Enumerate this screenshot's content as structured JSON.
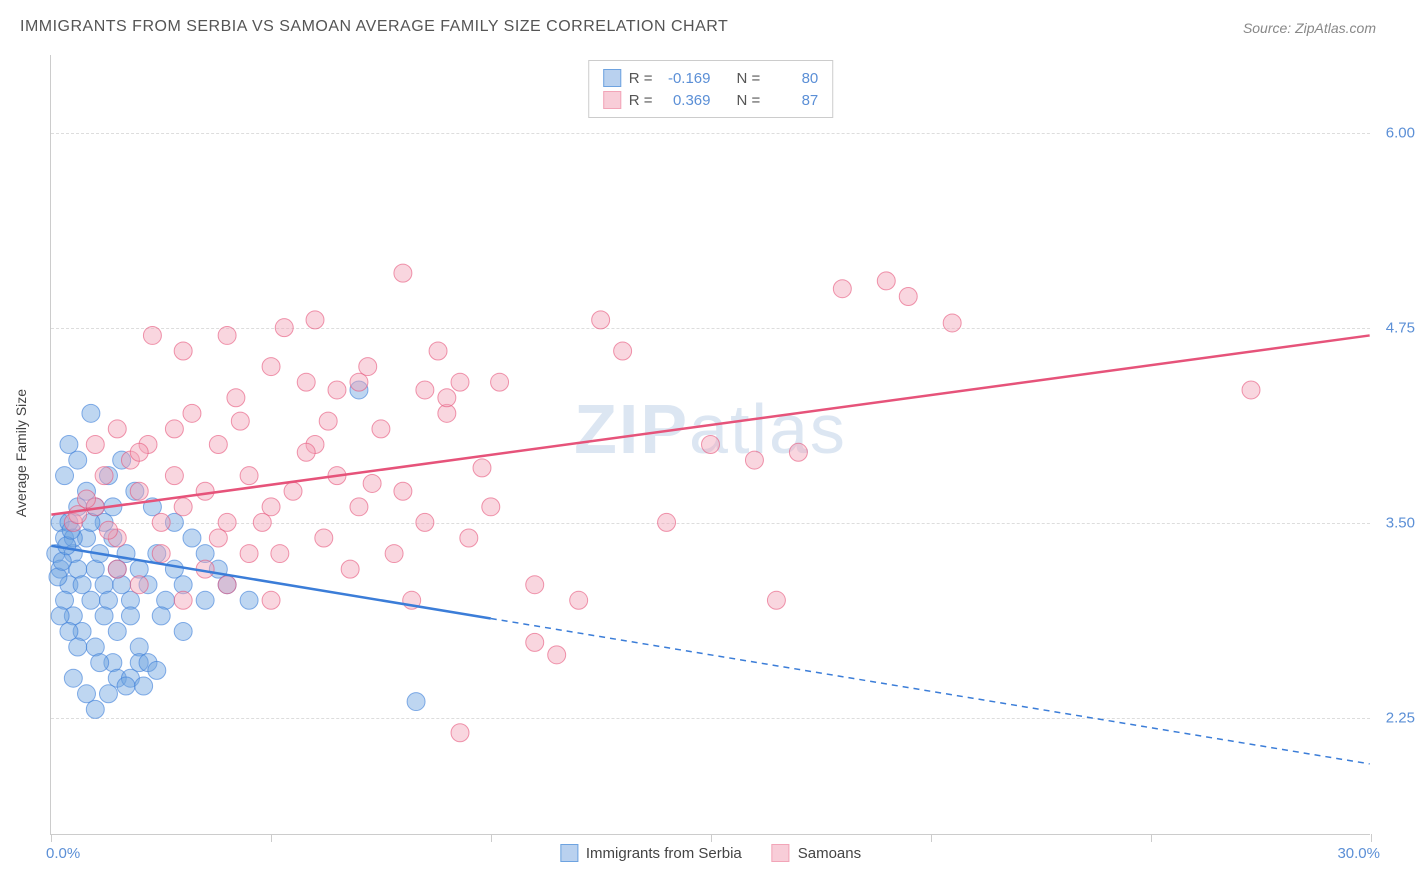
{
  "title": "IMMIGRANTS FROM SERBIA VS SAMOAN AVERAGE FAMILY SIZE CORRELATION CHART",
  "source": "Source: ZipAtlas.com",
  "axis": {
    "y_title": "Average Family Size",
    "x_min_label": "0.0%",
    "x_max_label": "30.0%"
  },
  "watermark": {
    "part1": "ZIP",
    "part2": "atlas"
  },
  "chart": {
    "type": "scatter",
    "xlim": [
      0,
      30
    ],
    "ylim": [
      1.5,
      6.5
    ],
    "y_gridlines": [
      2.25,
      3.5,
      4.75,
      6.0
    ],
    "y_tick_labels": [
      "2.25",
      "3.50",
      "4.75",
      "6.00"
    ],
    "x_ticks": [
      0,
      5,
      10,
      15,
      20,
      25,
      30
    ],
    "background_color": "#ffffff",
    "grid_color": "#dddddd",
    "marker_radius": 9,
    "marker_opacity": 0.45,
    "series": [
      {
        "name": "Immigrants from Serbia",
        "color": "#6ea3e0",
        "stroke": "#3b7dd8",
        "r_label": "-0.169",
        "n_label": "80",
        "regression": {
          "x1": 0,
          "y1": 3.35,
          "x2": 30,
          "y2": 1.95,
          "solid_until_x": 10
        },
        "points": [
          [
            0.1,
            3.3
          ],
          [
            0.2,
            3.5
          ],
          [
            0.3,
            3.4
          ],
          [
            0.2,
            3.2
          ],
          [
            0.4,
            3.1
          ],
          [
            0.3,
            3.0
          ],
          [
            0.5,
            3.3
          ],
          [
            0.6,
            3.2
          ],
          [
            0.4,
            3.5
          ],
          [
            0.7,
            3.1
          ],
          [
            0.8,
            3.4
          ],
          [
            0.5,
            2.9
          ],
          [
            0.9,
            3.0
          ],
          [
            1.0,
            3.2
          ],
          [
            0.6,
            3.6
          ],
          [
            1.1,
            3.3
          ],
          [
            1.2,
            3.1
          ],
          [
            1.3,
            3.0
          ],
          [
            0.7,
            2.8
          ],
          [
            1.4,
            3.4
          ],
          [
            1.5,
            3.2
          ],
          [
            1.0,
            2.7
          ],
          [
            1.6,
            3.1
          ],
          [
            0.8,
            3.7
          ],
          [
            1.7,
            3.3
          ],
          [
            1.2,
            2.9
          ],
          [
            1.8,
            3.0
          ],
          [
            0.9,
            4.2
          ],
          [
            2.0,
            3.2
          ],
          [
            1.5,
            2.8
          ],
          [
            2.2,
            3.1
          ],
          [
            1.3,
            3.8
          ],
          [
            2.4,
            3.3
          ],
          [
            1.8,
            2.9
          ],
          [
            2.6,
            3.0
          ],
          [
            1.4,
            2.6
          ],
          [
            2.8,
            3.2
          ],
          [
            1.6,
            3.9
          ],
          [
            3.0,
            3.1
          ],
          [
            2.0,
            2.7
          ],
          [
            0.5,
            2.5
          ],
          [
            1.1,
            2.6
          ],
          [
            0.8,
            2.4
          ],
          [
            1.5,
            2.5
          ],
          [
            1.0,
            2.3
          ],
          [
            2.0,
            2.6
          ],
          [
            1.3,
            2.4
          ],
          [
            2.5,
            2.9
          ],
          [
            1.8,
            2.5
          ],
          [
            3.0,
            2.8
          ],
          [
            2.2,
            2.6
          ],
          [
            3.5,
            3.0
          ],
          [
            7.0,
            4.35
          ],
          [
            0.3,
            3.8
          ],
          [
            0.4,
            4.0
          ],
          [
            0.6,
            3.9
          ],
          [
            1.0,
            3.6
          ],
          [
            1.2,
            3.5
          ],
          [
            0.5,
            3.4
          ],
          [
            0.9,
            3.5
          ],
          [
            1.4,
            3.6
          ],
          [
            3.5,
            3.3
          ],
          [
            4.0,
            3.1
          ],
          [
            4.5,
            3.0
          ],
          [
            3.2,
            3.4
          ],
          [
            2.8,
            3.5
          ],
          [
            1.9,
            3.7
          ],
          [
            2.3,
            3.6
          ],
          [
            0.2,
            2.9
          ],
          [
            0.4,
            2.8
          ],
          [
            0.6,
            2.7
          ],
          [
            1.7,
            2.45
          ],
          [
            2.1,
            2.45
          ],
          [
            2.4,
            2.55
          ],
          [
            0.15,
            3.15
          ],
          [
            0.25,
            3.25
          ],
          [
            0.35,
            3.35
          ],
          [
            0.45,
            3.45
          ],
          [
            8.3,
            2.35
          ],
          [
            3.8,
            3.2
          ]
        ]
      },
      {
        "name": "Samoans",
        "color": "#f2a5b8",
        "stroke": "#e6537a",
        "r_label": "0.369",
        "n_label": "87",
        "regression": {
          "x1": 0,
          "y1": 3.55,
          "x2": 30,
          "y2": 4.7,
          "solid_until_x": 30
        },
        "points": [
          [
            0.5,
            3.5
          ],
          [
            1.0,
            3.6
          ],
          [
            1.5,
            3.4
          ],
          [
            2.0,
            3.7
          ],
          [
            1.2,
            3.8
          ],
          [
            2.5,
            3.5
          ],
          [
            1.8,
            3.9
          ],
          [
            3.0,
            3.6
          ],
          [
            2.2,
            4.0
          ],
          [
            3.5,
            3.7
          ],
          [
            2.8,
            4.1
          ],
          [
            4.0,
            3.5
          ],
          [
            3.2,
            4.2
          ],
          [
            4.5,
            3.8
          ],
          [
            3.8,
            3.4
          ],
          [
            5.0,
            3.6
          ],
          [
            4.2,
            4.3
          ],
          [
            5.5,
            3.7
          ],
          [
            4.8,
            3.5
          ],
          [
            6.0,
            4.0
          ],
          [
            5.2,
            3.3
          ],
          [
            6.5,
            3.8
          ],
          [
            5.8,
            4.4
          ],
          [
            7.0,
            3.6
          ],
          [
            6.2,
            3.4
          ],
          [
            7.5,
            4.1
          ],
          [
            6.8,
            3.2
          ],
          [
            8.0,
            3.7
          ],
          [
            7.2,
            4.5
          ],
          [
            8.5,
            3.5
          ],
          [
            7.8,
            3.3
          ],
          [
            9.0,
            4.2
          ],
          [
            8.2,
            3.0
          ],
          [
            9.5,
            3.4
          ],
          [
            8.8,
            4.6
          ],
          [
            10.0,
            3.6
          ],
          [
            4.0,
            4.7
          ],
          [
            5.0,
            4.5
          ],
          [
            6.0,
            4.8
          ],
          [
            7.0,
            4.4
          ],
          [
            8.0,
            5.1
          ],
          [
            9.0,
            4.3
          ],
          [
            3.0,
            4.6
          ],
          [
            6.5,
            4.35
          ],
          [
            10.2,
            4.4
          ],
          [
            11.0,
            3.1
          ],
          [
            11.5,
            2.65
          ],
          [
            12.0,
            3.0
          ],
          [
            12.5,
            4.8
          ],
          [
            13.0,
            4.6
          ],
          [
            14.0,
            3.5
          ],
          [
            15.0,
            4.0
          ],
          [
            16.0,
            3.9
          ],
          [
            16.5,
            3.0
          ],
          [
            17.0,
            3.95
          ],
          [
            18.0,
            5.0
          ],
          [
            19.0,
            5.05
          ],
          [
            19.5,
            4.95
          ],
          [
            20.5,
            4.78
          ],
          [
            1.5,
            3.2
          ],
          [
            2.0,
            3.1
          ],
          [
            2.5,
            3.3
          ],
          [
            3.0,
            3.0
          ],
          [
            3.5,
            3.2
          ],
          [
            4.0,
            3.1
          ],
          [
            4.5,
            3.3
          ],
          [
            5.0,
            3.0
          ],
          [
            9.3,
            2.15
          ],
          [
            27.3,
            4.35
          ],
          [
            5.3,
            4.75
          ],
          [
            8.5,
            4.35
          ],
          [
            9.3,
            4.4
          ],
          [
            2.3,
            4.7
          ],
          [
            3.8,
            4.0
          ],
          [
            4.3,
            4.15
          ],
          [
            5.8,
            3.95
          ],
          [
            6.3,
            4.15
          ],
          [
            7.3,
            3.75
          ],
          [
            1.0,
            4.0
          ],
          [
            1.5,
            4.1
          ],
          [
            2.0,
            3.95
          ],
          [
            2.8,
            3.8
          ],
          [
            0.8,
            3.65
          ],
          [
            1.3,
            3.45
          ],
          [
            0.6,
            3.55
          ],
          [
            9.8,
            3.85
          ],
          [
            11.0,
            2.73
          ]
        ]
      }
    ]
  },
  "legend_bottom": [
    {
      "label": "Immigrants from Serbia",
      "fill": "#b9d1ef",
      "stroke": "#6ea3e0"
    },
    {
      "label": "Samoans",
      "fill": "#f8cdd8",
      "stroke": "#f2a5b8"
    }
  ],
  "legend_top_swatches": [
    {
      "fill": "#b9d1ef",
      "stroke": "#6ea3e0"
    },
    {
      "fill": "#f8cdd8",
      "stroke": "#f2a5b8"
    }
  ]
}
